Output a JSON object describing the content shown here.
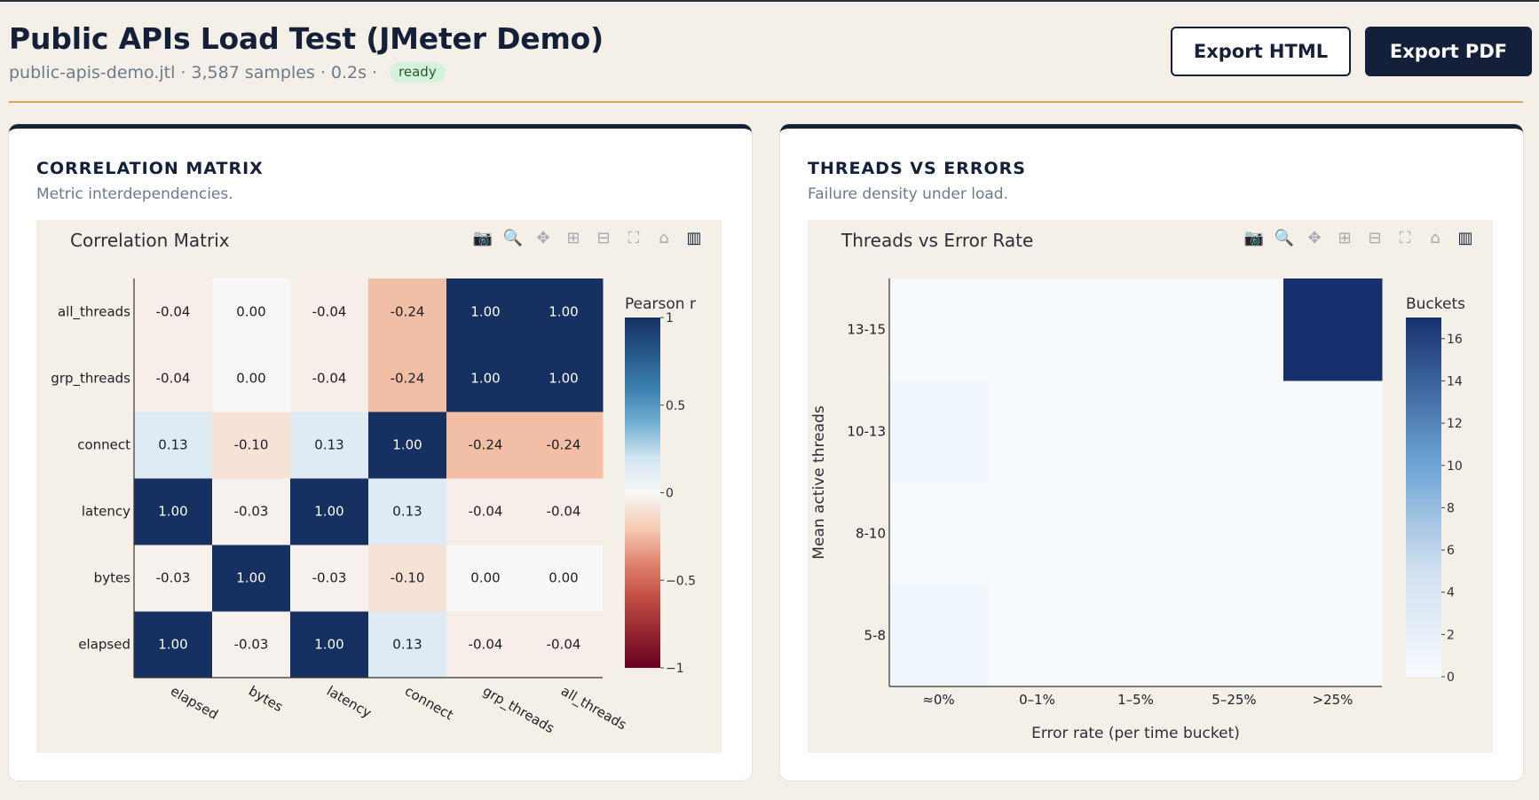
{
  "header": {
    "title": "Public APIs Load Test (JMeter Demo)",
    "file": "public-apis-demo.jtl",
    "samples": "3,587 samples",
    "duration": "0.2s",
    "status": "ready",
    "status_color": "#d6f1dc",
    "separator": "·"
  },
  "buttons": {
    "export_html": "Export HTML",
    "export_pdf": "Export PDF"
  },
  "modebar_icons": [
    "camera-icon",
    "zoom-icon",
    "pan-icon",
    "zoom-in-icon",
    "zoom-out-icon",
    "autoscale-icon",
    "home-icon",
    "plotly-logo-icon"
  ],
  "correlation_card": {
    "heading": "CORRELATION MATRIX",
    "subtitle": "Metric interdependencies."
  },
  "threads_card": {
    "heading": "THREADS VS ERRORS",
    "subtitle": "Failure density under load."
  },
  "chart_data": [
    {
      "type": "heatmap",
      "title": "Correlation Matrix",
      "x_categories": [
        "elapsed",
        "bytes",
        "latency",
        "connect",
        "grp_threads",
        "all_threads"
      ],
      "y_categories": [
        "elapsed",
        "bytes",
        "latency",
        "connect",
        "grp_threads",
        "all_threads"
      ],
      "values": [
        [
          1.0,
          -0.03,
          1.0,
          0.13,
          -0.04,
          -0.04
        ],
        [
          -0.03,
          1.0,
          -0.03,
          -0.1,
          0.0,
          0.0
        ],
        [
          1.0,
          -0.03,
          1.0,
          0.13,
          -0.04,
          -0.04
        ],
        [
          0.13,
          -0.1,
          0.13,
          1.0,
          -0.24,
          -0.24
        ],
        [
          -0.04,
          0.0,
          -0.04,
          -0.24,
          1.0,
          1.0
        ],
        [
          -0.04,
          0.0,
          -0.04,
          -0.24,
          1.0,
          1.0
        ]
      ],
      "cell_labels": [
        [
          "1.00",
          "-0.03",
          "1.00",
          "0.13",
          "-0.04",
          "-0.04"
        ],
        [
          "-0.03",
          "1.00",
          "-0.03",
          "-0.10",
          "0.00",
          "0.00"
        ],
        [
          "1.00",
          "-0.03",
          "1.00",
          "0.13",
          "-0.04",
          "-0.04"
        ],
        [
          "0.13",
          "-0.10",
          "0.13",
          "1.00",
          "-0.24",
          "-0.24"
        ],
        [
          "-0.04",
          "0.00",
          "-0.04",
          "-0.24",
          "1.00",
          "1.00"
        ],
        [
          "-0.04",
          "0.00",
          "-0.04",
          "-0.24",
          "1.00",
          "1.00"
        ]
      ],
      "zlim": [
        -1,
        1
      ],
      "colorbar_title": "Pearson r",
      "colorbar_ticks": [
        1,
        0.5,
        0,
        -0.5,
        -1
      ],
      "colorbar_tick_labels": [
        "1",
        "0.5",
        "0",
        "−0.5",
        "−1"
      ],
      "colorscale": "RdBu"
    },
    {
      "type": "heatmap",
      "title": "Threads vs Error Rate",
      "xlabel": "Error rate (per time bucket)",
      "ylabel": "Mean active threads",
      "x_categories": [
        "≈0%",
        "0–1%",
        "1–5%",
        "5–25%",
        ">25%"
      ],
      "y_categories": [
        "5-8",
        "8-10",
        "10-13",
        "13-15"
      ],
      "values": [
        [
          1,
          0,
          0,
          0,
          0
        ],
        [
          0,
          0,
          0,
          0,
          0
        ],
        [
          1,
          0,
          0,
          0,
          0
        ],
        [
          0,
          0,
          0,
          0,
          17
        ]
      ],
      "zlim": [
        0,
        17
      ],
      "colorbar_title": "Buckets",
      "colorbar_ticks": [
        0,
        2,
        4,
        6,
        8,
        10,
        12,
        14,
        16
      ],
      "colorbar_tick_labels": [
        "0",
        "2",
        "4",
        "6",
        "8",
        "10",
        "12",
        "14",
        "16"
      ],
      "colorscale": "Blues"
    }
  ]
}
